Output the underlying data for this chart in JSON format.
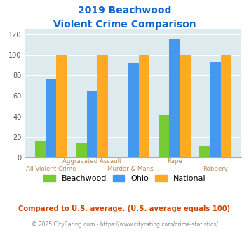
{
  "title_line1": "2019 Beachwood",
  "title_line2": "Violent Crime Comparison",
  "top_labels": [
    "",
    "Aggravated Assault",
    "",
    "Rape",
    ""
  ],
  "bot_labels": [
    "All Violent Crime",
    "",
    "Murder & Mans...",
    "",
    "Robbery"
  ],
  "beachwood": [
    16,
    14,
    0,
    41,
    11
  ],
  "ohio": [
    77,
    65,
    92,
    115,
    93
  ],
  "national": [
    100,
    100,
    100,
    100,
    100
  ],
  "beachwood_color": "#77cc33",
  "ohio_color": "#4499ee",
  "national_color": "#ffaa22",
  "ylim": [
    0,
    125
  ],
  "yticks": [
    0,
    20,
    40,
    60,
    80,
    100,
    120
  ],
  "bg_color": "#ddeaee",
  "title_color": "#1166cc",
  "label_color": "#bb8855",
  "subtitle_note": "Compared to U.S. average. (U.S. average equals 100)",
  "subtitle_note_color": "#cc4400",
  "footer": "© 2025 CityRating.com - https://www.cityrating.com/crime-statistics/",
  "footer_color": "#888888"
}
